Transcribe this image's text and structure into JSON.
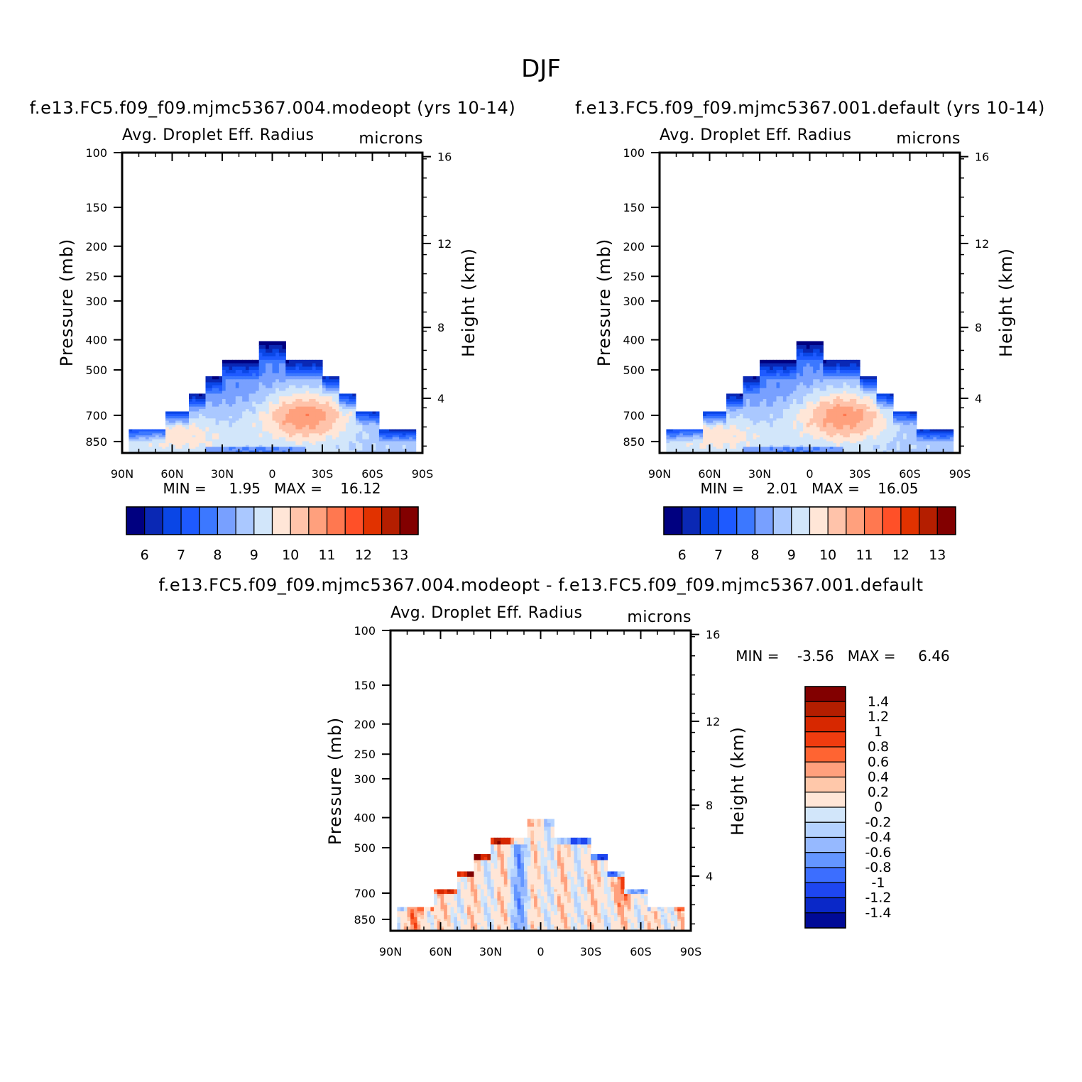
{
  "page_title": "DJF",
  "chart_data": [
    {
      "type": "heatmap",
      "title": "f.e13.FC5.f09_f09.mjmc5367.004.modeopt (yrs 10-14)",
      "left_subtitle": "Avg. Droplet Eff. Radius",
      "right_subtitle": "microns",
      "ylabel": "Pressure (mb)",
      "ylabel_right": "Height (km)",
      "x_ticks": [
        "90N",
        "60N",
        "30N",
        "0",
        "30S",
        "60S",
        "90S"
      ],
      "xlim": [
        90,
        -90
      ],
      "y_ticks": [
        "100",
        "150",
        "200",
        "250",
        "300",
        "400",
        "500",
        "700",
        "850"
      ],
      "y_right_ticks": [
        "16",
        "12",
        "8",
        "4"
      ],
      "ylim": [
        100,
        925
      ],
      "log_scale_y": true,
      "stats_text": "MIN =     1.95   MAX =    16.12",
      "colorbar_labels": [
        "6",
        "7",
        "8",
        "9",
        "10",
        "11",
        "12",
        "13"
      ],
      "colorbar_orientation": "horizontal",
      "field": "radius"
    },
    {
      "type": "heatmap",
      "title": "f.e13.FC5.f09_f09.mjmc5367.001.default (yrs 10-14)",
      "left_subtitle": "Avg. Droplet Eff. Radius",
      "right_subtitle": "microns",
      "ylabel": "Pressure (mb)",
      "ylabel_right": "Height (km)",
      "x_ticks": [
        "90N",
        "60N",
        "30N",
        "0",
        "30S",
        "60S",
        "90S"
      ],
      "xlim": [
        90,
        -90
      ],
      "y_ticks": [
        "100",
        "150",
        "200",
        "250",
        "300",
        "400",
        "500",
        "700",
        "850"
      ],
      "y_right_ticks": [
        "16",
        "12",
        "8",
        "4"
      ],
      "ylim": [
        100,
        925
      ],
      "log_scale_y": true,
      "stats_text": "MIN =     2.01   MAX =    16.05",
      "colorbar_labels": [
        "6",
        "7",
        "8",
        "9",
        "10",
        "11",
        "12",
        "13"
      ],
      "colorbar_orientation": "horizontal",
      "field": "radius"
    },
    {
      "type": "heatmap",
      "title": "f.e13.FC5.f09_f09.mjmc5367.004.modeopt - f.e13.FC5.f09_f09.mjmc5367.001.default",
      "left_subtitle": "Avg. Droplet Eff. Radius",
      "right_subtitle": "microns",
      "ylabel": "Pressure (mb)",
      "ylabel_right": "Height (km)",
      "x_ticks": [
        "90N",
        "60N",
        "30N",
        "0",
        "30S",
        "60S",
        "90S"
      ],
      "xlim": [
        90,
        -90
      ],
      "y_ticks": [
        "100",
        "150",
        "200",
        "250",
        "300",
        "400",
        "500",
        "700",
        "850"
      ],
      "y_right_ticks": [
        "16",
        "12",
        "8",
        "4"
      ],
      "ylim": [
        100,
        925
      ],
      "log_scale_y": true,
      "stats_text": "MIN =    -3.56   MAX =     6.46",
      "colorbar_labels": [
        "1.4",
        "1.2",
        "1",
        "0.8",
        "0.6",
        "0.4",
        "0.2",
        "0",
        "-0.2",
        "-0.4",
        "-0.6",
        "-0.8",
        "-1",
        "-1.2",
        "-1.4"
      ],
      "colorbar_orientation": "vertical",
      "field": "difference"
    }
  ],
  "colors": {
    "radius_scale": [
      "#000080",
      "#0a28b4",
      "#0a46e6",
      "#1e5aff",
      "#3c78ff",
      "#78a0ff",
      "#aac8ff",
      "#d2e6fa",
      "#ffe6d7",
      "#ffc3aa",
      "#ffa07d",
      "#ff7850",
      "#ff5028",
      "#e13200",
      "#b41e00",
      "#820000"
    ],
    "difference_scale": [
      "#820000",
      "#b41e00",
      "#d72800",
      "#f03c0f",
      "#ff6432",
      "#ffa07d",
      "#ffc8aa",
      "#ffe6d7",
      "#d2e6fa",
      "#b4d2ff",
      "#96b9ff",
      "#6496ff",
      "#3c6eff",
      "#1e46f0",
      "#0a28c8",
      "#000a96"
    ]
  }
}
